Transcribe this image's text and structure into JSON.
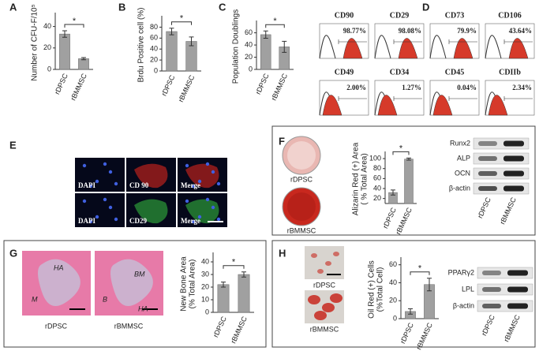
{
  "chart_data": [
    {
      "type": "bar",
      "label": "A",
      "ylabel": [
        "Number of CFU-F/10⁵"
      ],
      "categories": [
        "rDPSC",
        "rBMMSC"
      ],
      "values": [
        33,
        10
      ],
      "errors": [
        3,
        1
      ],
      "ylim": [
        0,
        50
      ],
      "yticks": [
        0,
        20,
        40
      ],
      "annotation": "*",
      "color": "#a0a0a0"
    },
    {
      "type": "bar",
      "label": "B",
      "ylabel": [
        "Brdu Positive cell (%)"
      ],
      "categories": [
        "rDPSC",
        "rBMMSC"
      ],
      "values": [
        72,
        54
      ],
      "errors": [
        6,
        8
      ],
      "ylim": [
        0,
        95
      ],
      "yticks": [
        0,
        20,
        40,
        60,
        80
      ],
      "annotation": "*",
      "color": "#a0a0a0"
    },
    {
      "type": "bar",
      "label": "C",
      "ylabel": [
        "Population Doublings"
      ],
      "categories": [
        "rDPSC",
        "rBMMSC"
      ],
      "values": [
        57,
        37
      ],
      "errors": [
        6,
        9
      ],
      "ylim": [
        0,
        75
      ],
      "yticks": [
        0,
        20,
        40,
        60
      ],
      "annotation": "*",
      "color": "#a0a0a0"
    },
    {
      "type": "bar",
      "label": "F",
      "ylabel": [
        "Alizarin Red (+) Area",
        "( % Total Area)"
      ],
      "categories": [
        "rDPSC",
        "rBMMSC"
      ],
      "values": [
        32,
        99
      ],
      "errors": [
        5,
        2
      ],
      "ylim": [
        10,
        108
      ],
      "yticks": [
        20,
        40,
        60,
        80,
        100
      ],
      "annotation": "*",
      "color": "#a0a0a0"
    },
    {
      "type": "bar",
      "label": "G",
      "ylabel": [
        "New Bone Area",
        "(% Total Area)"
      ],
      "categories": [
        "rDPSC",
        "rBMMSC"
      ],
      "values": [
        22,
        30
      ],
      "errors": [
        2,
        2
      ],
      "ylim": [
        0,
        45
      ],
      "yticks": [
        0,
        10,
        20,
        30,
        40
      ],
      "annotation": "*",
      "color": "#a0a0a0"
    },
    {
      "type": "bar",
      "label": "H",
      "ylabel": [
        "Oil Red (+) Cells",
        "(%Total Cell)"
      ],
      "categories": [
        "rDPSC",
        "rBMMSC"
      ],
      "values": [
        8,
        38
      ],
      "errors": [
        3,
        7
      ],
      "ylim": [
        0,
        65
      ],
      "yticks": [
        0,
        20,
        40,
        60
      ],
      "annotation": "*",
      "color": "#a0a0a0"
    }
  ],
  "flow": {
    "label": "D",
    "markers": [
      {
        "name": "CD90",
        "percent": "98.77%"
      },
      {
        "name": "CD29",
        "percent": "98.08%"
      },
      {
        "name": "CD73",
        "percent": "79.9%"
      },
      {
        "name": "CD106",
        "percent": "43.64%"
      },
      {
        "name": "CD49",
        "percent": "2.00%"
      },
      {
        "name": "CD34",
        "percent": "1.27%"
      },
      {
        "name": "CD45",
        "percent": "0.04%"
      },
      {
        "name": "CDIIb",
        "percent": "2.34%"
      }
    ]
  },
  "immunofluorescence": {
    "label": "E",
    "images": [
      "DAPI",
      "CD 90",
      "Merge",
      "DAPI",
      "CD29",
      "Merge"
    ]
  },
  "osteogenic": {
    "image_labels": [
      "rDPSC",
      "rBMMSC"
    ],
    "blot_labels": [
      "Runx2",
      "ALP",
      "OCN",
      "β-actin"
    ],
    "blot_lanes": [
      "rDPSC",
      "rBMMSC"
    ]
  },
  "bone": {
    "image_labels": [
      "rDPSC",
      "rBMMSC"
    ],
    "histology_marks": [
      "HA",
      "M",
      "BM",
      "B",
      "HA"
    ]
  },
  "adipogenic": {
    "image_labels": [
      "rDPSC",
      "rBMMSC"
    ],
    "blot_labels": [
      "PPARγ2",
      "LPL",
      "β-actin"
    ],
    "blot_lanes": [
      "rDPSC",
      "rBMMSC"
    ]
  }
}
